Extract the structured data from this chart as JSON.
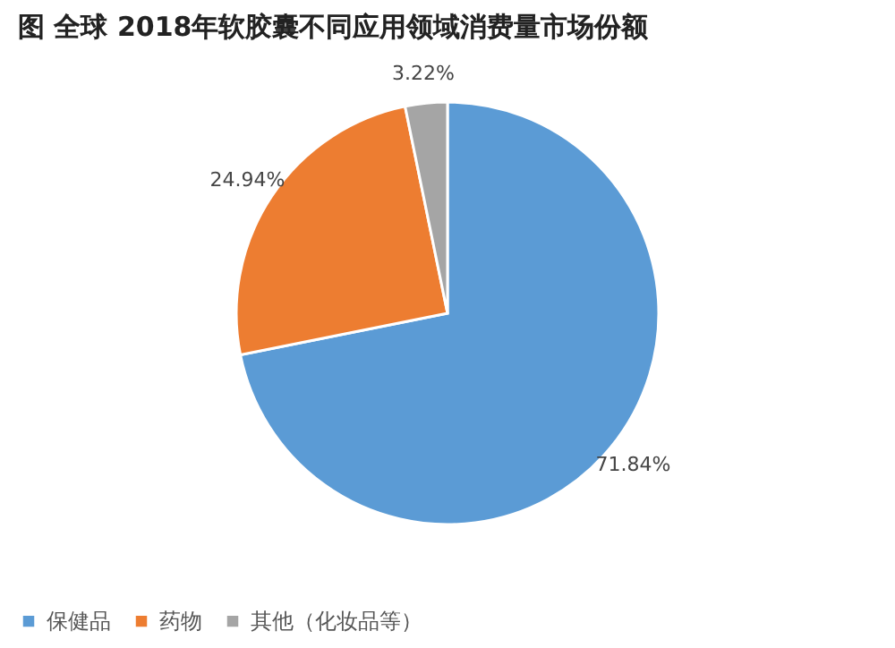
{
  "chart_data": {
    "type": "pie",
    "title": "图 全球 2018年软胶囊不同应用领域消费量市场份额",
    "categories": [
      "保健品",
      "药物",
      "其他（化妆品等）"
    ],
    "values": [
      71.84,
      24.94,
      3.22
    ],
    "colors": [
      "#5b9bd5",
      "#ed7d31",
      "#a5a5a5"
    ],
    "value_labels": [
      "71.84%",
      "24.94%",
      "3.22%"
    ],
    "legend": "bottom"
  }
}
